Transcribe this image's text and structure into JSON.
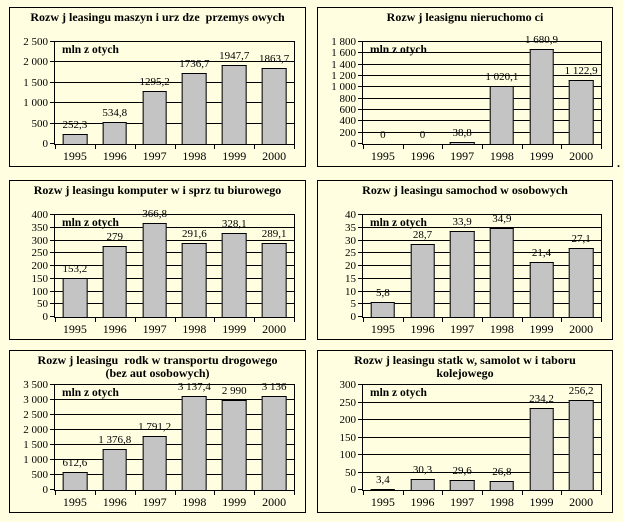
{
  "page": {
    "background": "#fffee1",
    "trailing_dot": "."
  },
  "colors": {
    "bar_fill": "#c4c4c4",
    "line": "#000000"
  },
  "chart_data": [
    {
      "type": "bar",
      "title_lines": [
        "Rozw j leasingu maszyn i urz dze  przemys owych"
      ],
      "unit_label": "mln z otych",
      "categories": [
        "1995",
        "1996",
        "1997",
        "1998",
        "1999",
        "2000"
      ],
      "values": [
        252.3,
        534.8,
        1295.2,
        1736.7,
        1947.7,
        1863.7
      ],
      "value_labels": [
        "252,3",
        "534,8",
        "1295,2",
        "1736,7",
        "1947,7",
        "1863,7"
      ],
      "ylim": [
        0,
        2500
      ],
      "ytick_step": 500,
      "ytick_labels": [
        "0",
        "500",
        "1 000",
        "1 500",
        "2 000",
        "2 500"
      ],
      "grid": true,
      "legend": "none"
    },
    {
      "type": "bar",
      "title_lines": [
        "Rozw j leasignu nieruchomo ci"
      ],
      "unit_label": "mln z otych",
      "categories": [
        "1995",
        "1996",
        "1997",
        "1998",
        "1999",
        "2000"
      ],
      "values": [
        0,
        0,
        38.8,
        1020.1,
        1680.9,
        1122.9
      ],
      "value_labels": [
        "0",
        "0",
        "38,8",
        "1 020,1",
        "1 680,9",
        "1 122,9"
      ],
      "ylim": [
        0,
        1800
      ],
      "ytick_step": 200,
      "ytick_labels": [
        "0",
        "200",
        "400",
        "600",
        "800",
        "1 000",
        "1 200",
        "1 400",
        "1 600",
        "1 800"
      ],
      "grid": true,
      "legend": "none"
    },
    {
      "type": "bar",
      "title_lines": [
        "Rozw j leasingu komputer w i sprz tu biurowego"
      ],
      "unit_label": "mln z otych",
      "categories": [
        "1995",
        "1996",
        "1997",
        "1998",
        "1999",
        "2000"
      ],
      "values": [
        153.2,
        279,
        366.8,
        291.6,
        328.1,
        289.1
      ],
      "value_labels": [
        "153,2",
        "279",
        "366,8",
        "291,6",
        "328,1",
        "289,1"
      ],
      "ylim": [
        0,
        400
      ],
      "ytick_step": 50,
      "ytick_labels": [
        "0",
        "50",
        "100",
        "150",
        "200",
        "250",
        "300",
        "350",
        "400"
      ],
      "grid": true,
      "legend": "none"
    },
    {
      "type": "bar",
      "title_lines": [
        "Rozw j leasingu samochod w osobowych"
      ],
      "unit_label": "mln z otych",
      "categories": [
        "1995",
        "1996",
        "1997",
        "1998",
        "1999",
        "2000"
      ],
      "values": [
        5.8,
        28.7,
        33.9,
        34.9,
        21.4,
        27.1
      ],
      "value_labels": [
        "5,8",
        "28,7",
        "33,9",
        "34,9",
        "21,4",
        "27,1"
      ],
      "ylim": [
        0,
        40
      ],
      "ytick_step": 5,
      "ytick_labels": [
        "0",
        "5",
        "10",
        "15",
        "20",
        "25",
        "30",
        "35",
        "40"
      ],
      "grid": true,
      "legend": "none"
    },
    {
      "type": "bar",
      "title_lines": [
        "Rozw j leasingu  rodk w transportu drogowego",
        "(bez aut osobowych)"
      ],
      "unit_label": "mln z otych",
      "categories": [
        "1995",
        "1996",
        "1997",
        "1998",
        "1999",
        "2000"
      ],
      "values": [
        612.6,
        1376.8,
        1791.2,
        3137.4,
        2990,
        3136
      ],
      "value_labels": [
        "612,6",
        "1 376,8",
        "1 791,2",
        "3 137,4",
        "2 990",
        "3 136"
      ],
      "ylim": [
        0,
        3500
      ],
      "ytick_step": 500,
      "ytick_labels": [
        "0",
        "500",
        "1 000",
        "1 500",
        "2 000",
        "2 500",
        "3 000",
        "3 500"
      ],
      "grid": true,
      "legend": "none"
    },
    {
      "type": "bar",
      "title_lines": [
        "Rozw j leasingu statk w, samolot w i taboru",
        "kolejowego"
      ],
      "unit_label": "mln z otych",
      "categories": [
        "1995",
        "1996",
        "1997",
        "1998",
        "1999",
        "2000"
      ],
      "values": [
        3.4,
        30.3,
        29.6,
        26.8,
        234.2,
        256.2
      ],
      "value_labels": [
        "3,4",
        "30,3",
        "29,6",
        "26,8",
        "234,2",
        "256,2"
      ],
      "ylim": [
        0,
        300
      ],
      "ytick_step": 50,
      "ytick_labels": [
        "0",
        "50",
        "100",
        "150",
        "200",
        "250",
        "300"
      ],
      "grid": true,
      "legend": "none"
    }
  ]
}
